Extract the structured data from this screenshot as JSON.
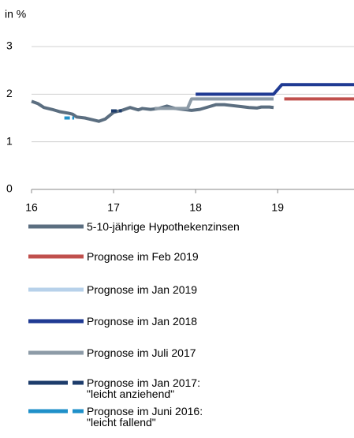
{
  "chart_data": {
    "type": "line",
    "y_label": "in %",
    "xlim": [
      16,
      19.93
    ],
    "xticks": [
      16,
      17,
      18,
      19
    ],
    "ylim": [
      0,
      3
    ],
    "yticks": [
      0,
      1,
      2,
      3
    ],
    "grid": true,
    "series": [
      {
        "name": "5-10-jährige Hypothekenzinsen",
        "color": "#5b6e80",
        "dash": false,
        "x": [
          16.0,
          16.08,
          16.15,
          16.25,
          16.35,
          16.45,
          16.5,
          16.55,
          16.65,
          16.75,
          16.82,
          16.9,
          17.0,
          17.1,
          17.2,
          17.3,
          17.35,
          17.45,
          17.55,
          17.65,
          17.75,
          17.85,
          17.95,
          18.05,
          18.15,
          18.25,
          18.35,
          18.45,
          18.55,
          18.65,
          18.75,
          18.8,
          18.9,
          18.95
        ],
        "values": [
          1.85,
          1.8,
          1.72,
          1.68,
          1.63,
          1.6,
          1.58,
          1.52,
          1.5,
          1.46,
          1.43,
          1.48,
          1.62,
          1.66,
          1.72,
          1.67,
          1.7,
          1.68,
          1.7,
          1.75,
          1.7,
          1.68,
          1.66,
          1.68,
          1.73,
          1.78,
          1.78,
          1.76,
          1.74,
          1.72,
          1.71,
          1.73,
          1.73,
          1.72
        ]
      },
      {
        "name": "Prognose im Feb 2019",
        "color": "#c0504d",
        "dash": false,
        "x": [
          19.08,
          19.93
        ],
        "values": [
          1.9,
          1.9
        ]
      },
      {
        "name": "Prognose im Jan 2019",
        "color": "#b7d1ea",
        "dash": false,
        "x": [
          18.0,
          18.95
        ],
        "values": [
          1.9,
          1.9
        ]
      },
      {
        "name": "Prognose im Jan 2018",
        "color": "#1f3a93",
        "dash": false,
        "x": [
          18.0,
          18.95,
          19.05,
          19.93
        ],
        "values": [
          2.0,
          2.0,
          2.2,
          2.2
        ]
      },
      {
        "name": "Prognose im Juli 2017",
        "color": "#8d9ba7",
        "dash": false,
        "x": [
          17.5,
          17.9,
          17.95,
          18.95
        ],
        "values": [
          1.7,
          1.7,
          1.9,
          1.9
        ]
      },
      {
        "name": "Prognose im Jan 2017:\n\"leicht anziehend\"",
        "color": "#1d3c6b",
        "dash": true,
        "x": [
          16.97,
          17.1
        ],
        "values": [
          1.65,
          1.65
        ]
      },
      {
        "name": "Prognose im Juni 2016:\n\"leicht fallend\"",
        "color": "#1f90c9",
        "dash": true,
        "x": [
          16.4,
          16.52
        ],
        "values": [
          1.5,
          1.5
        ]
      }
    ]
  }
}
